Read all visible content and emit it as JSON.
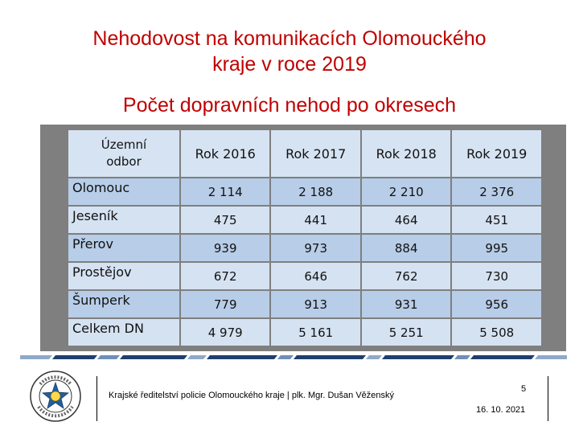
{
  "title_line1": "Nehodovost na komunikacích Olomouckého",
  "title_line2": "kraje v roce 2019",
  "subtitle": "Počet dopravních nehod po okresech",
  "table": {
    "corner_line1": "Územní",
    "corner_line2": "odbor",
    "years": [
      "Rok 2016",
      "Rok 2017",
      "Rok 2018",
      "Rok 2019"
    ],
    "rows": [
      {
        "name": "Olomouc",
        "values": [
          "2 114",
          "2 188",
          "2 210",
          "2 376"
        ]
      },
      {
        "name": "Jeseník",
        "values": [
          "475",
          "441",
          "464",
          "451"
        ]
      },
      {
        "name": "Přerov",
        "values": [
          "939",
          "973",
          "884",
          "995"
        ]
      },
      {
        "name": "Prostějov",
        "values": [
          "672",
          "646",
          "762",
          "730"
        ]
      },
      {
        "name": "Šumperk",
        "values": [
          "779",
          "913",
          "931",
          "956"
        ]
      },
      {
        "name": "Celkem DN",
        "values": [
          "4 979",
          "5 161",
          "5 251",
          "5 508"
        ]
      }
    ]
  },
  "footer": {
    "text": "Krajské ředitelství policie Olomouckého kraje | plk. Mgr. Dušan Věženský",
    "page": "5",
    "date": "16. 10. 2021"
  },
  "logo": {
    "icon": "police-cr-emblem-icon",
    "text": "POLICIE ČESKÉ REPUBLIKY"
  },
  "colors": {
    "title": "#c00000",
    "row_dark": "#b7cde8",
    "row_light": "#d5e2f2",
    "frame": "#7f7f7f",
    "stripe": "#1f3f6e"
  }
}
